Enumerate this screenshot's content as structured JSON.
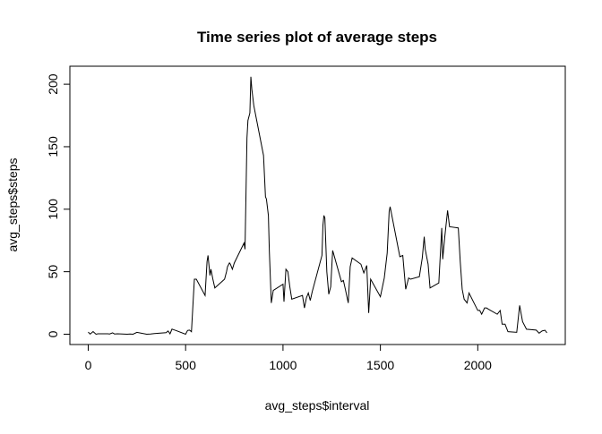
{
  "chart_data": {
    "type": "line",
    "title": "Time series plot of average steps",
    "xlabel": "avg_steps$interval",
    "ylabel": "avg_steps$steps",
    "x": [
      0,
      10,
      25,
      40,
      50,
      100,
      110,
      125,
      135,
      150,
      200,
      215,
      230,
      250,
      300,
      320,
      340,
      400,
      410,
      420,
      430,
      440,
      450,
      500,
      510,
      520,
      530,
      545,
      555,
      600,
      610,
      615,
      625,
      630,
      640,
      650,
      700,
      710,
      715,
      725,
      730,
      740,
      750,
      800,
      805,
      815,
      820,
      830,
      835,
      840,
      850,
      900,
      910,
      915,
      925,
      930,
      940,
      950,
      1000,
      1005,
      1015,
      1025,
      1035,
      1045,
      1100,
      1110,
      1120,
      1130,
      1140,
      1150,
      1200,
      1205,
      1210,
      1215,
      1225,
      1235,
      1245,
      1255,
      1300,
      1310,
      1320,
      1335,
      1345,
      1355,
      1400,
      1415,
      1430,
      1440,
      1450,
      1500,
      1520,
      1535,
      1545,
      1550,
      1600,
      1615,
      1630,
      1645,
      1655,
      1700,
      1715,
      1725,
      1730,
      1745,
      1755,
      1800,
      1815,
      1820,
      1830,
      1845,
      1855,
      1900,
      1910,
      1920,
      1930,
      1945,
      1955,
      2000,
      2010,
      2020,
      2035,
      2045,
      2055,
      2100,
      2115,
      2125,
      2140,
      2155,
      2200,
      2215,
      2230,
      2250,
      2300,
      2315,
      2330,
      2345,
      2355
    ],
    "series": [
      {
        "color": "#000000",
        "values": [
          1.7,
          0.1,
          2.1,
          0,
          0.3,
          0.3,
          0.2,
          1.1,
          0.2,
          0.3,
          0,
          0.2,
          0,
          1.5,
          0,
          0.2,
          0.5,
          1.2,
          2.6,
          0.3,
          4.1,
          3.5,
          3,
          0,
          3,
          3.3,
          2,
          44,
          44,
          31,
          58,
          63,
          47,
          52,
          44,
          37,
          44,
          50,
          54,
          57,
          56,
          52,
          57,
          73,
          68,
          157,
          171,
          177,
          206,
          196,
          183,
          143,
          110,
          108,
          95,
          66,
          25,
          35,
          40,
          26,
          52,
          50,
          38,
          28,
          31,
          21,
          29,
          33,
          27,
          34,
          63,
          87,
          95,
          93,
          50,
          32,
          38,
          67,
          42,
          43,
          36,
          25,
          54,
          61,
          56,
          49,
          55,
          17,
          44,
          30,
          45,
          65,
          98,
          102,
          62,
          63,
          36,
          45,
          44,
          46,
          61,
          78,
          68,
          56,
          37,
          41,
          85,
          60,
          77,
          99,
          86,
          85,
          58,
          36,
          28,
          25,
          33,
          19,
          19,
          16,
          21,
          21,
          20,
          16,
          19,
          8,
          8,
          2,
          1.5,
          23,
          10,
          4,
          3.3,
          0.8,
          2.6,
          3.2,
          1.1
        ]
      }
    ],
    "xlim": [
      -94.2,
      2449.2
    ],
    "ylim": [
      -8.25,
      214.4
    ],
    "xticks": [
      0,
      500,
      1000,
      1500,
      2000
    ],
    "yticks": [
      0,
      50,
      100,
      150,
      200
    ]
  }
}
